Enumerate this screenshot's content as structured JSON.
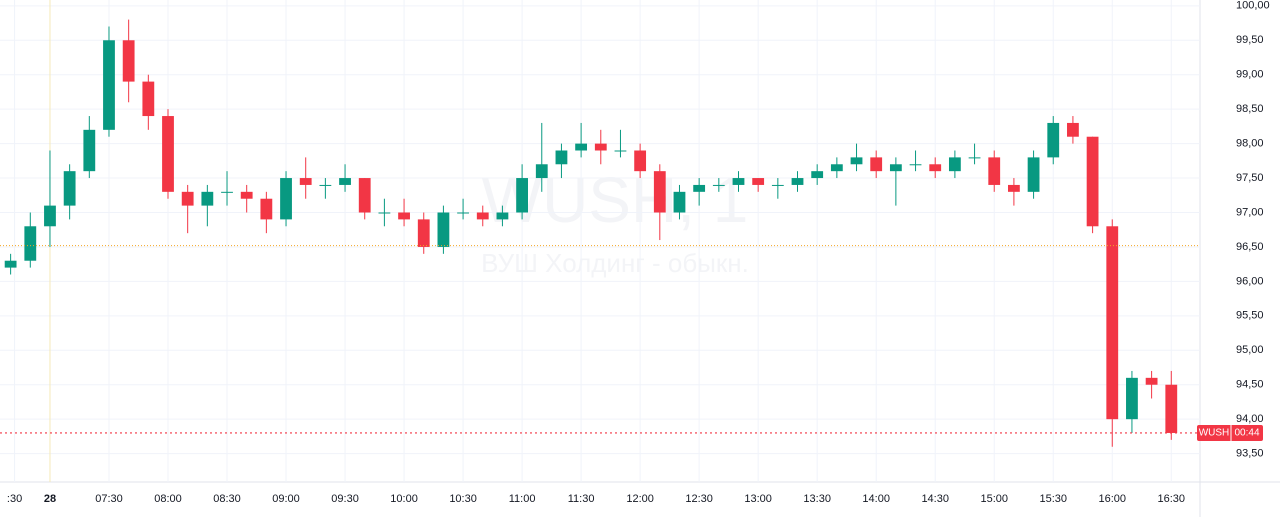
{
  "chart_data": {
    "type": "candlestick",
    "watermark_title": "WUSH, 1",
    "watermark_subtitle": "ВУШ Холдинг - обыкн.",
    "symbol": "WUSH",
    "countdown": "00:44",
    "last_price": 93.8,
    "last_price_color": "#f23645",
    "reference_price": 96.52,
    "reference_color": "#f5a623",
    "up_color": "#089981",
    "down_color": "#f23645",
    "grid": true,
    "x": [
      -20,
      -10,
      0,
      10,
      20,
      30,
      40,
      50,
      60,
      70,
      80,
      90,
      100,
      110,
      120,
      130,
      140,
      150,
      160,
      170,
      180,
      190,
      200,
      210,
      220,
      230,
      240,
      250,
      260,
      270,
      280,
      290,
      300,
      310,
      320,
      330,
      340,
      350,
      360,
      370,
      380,
      390,
      400,
      410,
      420,
      430,
      440,
      450,
      460,
      470,
      480,
      490,
      500,
      510,
      520,
      530,
      540,
      550,
      560,
      570
    ],
    "open": [
      96.2,
      96.3,
      96.8,
      97.1,
      97.6,
      98.2,
      99.5,
      98.9,
      98.4,
      97.3,
      97.1,
      97.3,
      97.3,
      97.2,
      96.9,
      97.5,
      97.4,
      97.4,
      97.5,
      97.0,
      97.0,
      96.9,
      96.5,
      97.0,
      97.0,
      96.9,
      97.0,
      97.5,
      97.7,
      97.9,
      98.0,
      97.9,
      97.9,
      97.6,
      97.0,
      97.3,
      97.4,
      97.4,
      97.5,
      97.4,
      97.4,
      97.5,
      97.6,
      97.7,
      97.8,
      97.6,
      97.7,
      97.7,
      97.6,
      97.8,
      97.8,
      97.4,
      97.3,
      97.8,
      98.3,
      98.1,
      96.8,
      94.0,
      94.6,
      94.5
    ],
    "high": [
      96.4,
      97.0,
      97.9,
      97.7,
      98.4,
      99.7,
      99.8,
      99.0,
      98.5,
      97.4,
      97.4,
      97.6,
      97.4,
      97.3,
      97.6,
      97.8,
      97.5,
      97.7,
      97.5,
      97.2,
      97.2,
      97.0,
      97.1,
      97.2,
      97.1,
      97.1,
      97.7,
      98.3,
      98.0,
      98.3,
      98.2,
      98.2,
      98.0,
      97.7,
      97.4,
      97.5,
      97.5,
      97.6,
      97.5,
      97.5,
      97.6,
      97.7,
      97.8,
      98.0,
      97.9,
      97.8,
      97.9,
      97.8,
      97.9,
      98.0,
      97.9,
      97.5,
      97.9,
      98.4,
      98.4,
      98.1,
      96.9,
      94.7,
      94.7,
      94.7
    ],
    "low": [
      96.1,
      96.2,
      96.5,
      96.9,
      97.5,
      98.1,
      98.6,
      98.2,
      97.2,
      96.7,
      96.8,
      97.1,
      97.0,
      96.7,
      96.8,
      97.2,
      97.2,
      97.3,
      96.9,
      96.8,
      96.8,
      96.4,
      96.4,
      96.9,
      96.8,
      96.8,
      96.9,
      97.3,
      97.5,
      97.8,
      97.7,
      97.8,
      97.5,
      96.6,
      96.9,
      97.1,
      97.3,
      97.3,
      97.3,
      97.2,
      97.3,
      97.4,
      97.5,
      97.6,
      97.5,
      97.1,
      97.6,
      97.5,
      97.5,
      97.7,
      97.3,
      97.1,
      97.2,
      97.7,
      98.0,
      96.7,
      93.6,
      93.8,
      94.3,
      93.7
    ],
    "close": [
      96.3,
      96.8,
      97.1,
      97.6,
      98.2,
      99.5,
      98.9,
      98.4,
      97.3,
      97.1,
      97.3,
      97.3,
      97.2,
      96.9,
      97.5,
      97.4,
      97.4,
      97.5,
      97.0,
      97.0,
      96.9,
      96.5,
      97.0,
      97.0,
      96.9,
      97.0,
      97.5,
      97.7,
      97.9,
      98.0,
      97.9,
      97.9,
      97.6,
      97.0,
      97.3,
      97.4,
      97.4,
      97.5,
      97.4,
      97.4,
      97.5,
      97.6,
      97.7,
      97.8,
      97.6,
      97.7,
      97.7,
      97.6,
      97.8,
      97.8,
      97.4,
      97.3,
      97.8,
      98.3,
      98.1,
      96.8,
      94.0,
      94.6,
      94.5,
      93.8
    ],
    "xlim": [
      -25.4,
      584.6
    ],
    "xticks": [
      {
        "value": -18,
        "label": ":30"
      },
      {
        "value": 0,
        "label": "28"
      },
      {
        "value": 30,
        "label": "07:30"
      },
      {
        "value": 60,
        "label": "08:00"
      },
      {
        "value": 90,
        "label": "08:30"
      },
      {
        "value": 120,
        "label": "09:00"
      },
      {
        "value": 150,
        "label": "09:30"
      },
      {
        "value": 180,
        "label": "10:00"
      },
      {
        "value": 210,
        "label": "10:30"
      },
      {
        "value": 240,
        "label": "11:00"
      },
      {
        "value": 270,
        "label": "11:30"
      },
      {
        "value": 300,
        "label": "12:00"
      },
      {
        "value": 330,
        "label": "12:30"
      },
      {
        "value": 360,
        "label": "13:00"
      },
      {
        "value": 390,
        "label": "13:30"
      },
      {
        "value": 420,
        "label": "14:00"
      },
      {
        "value": 450,
        "label": "14:30"
      },
      {
        "value": 480,
        "label": "15:00"
      },
      {
        "value": 510,
        "label": "15:30"
      },
      {
        "value": 540,
        "label": "16:00"
      },
      {
        "value": 570,
        "label": "16:30"
      }
    ],
    "ylim": [
      93.03,
      100.07
    ],
    "yticks": [
      {
        "value": 93.5,
        "label": "93,50"
      },
      {
        "value": 94,
        "label": "94,00"
      },
      {
        "value": 94.5,
        "label": "94,50"
      },
      {
        "value": 95,
        "label": "95,00"
      },
      {
        "value": 95.5,
        "label": "95,50"
      },
      {
        "value": 96,
        "label": "96,00"
      },
      {
        "value": 96.5,
        "label": "96,50"
      },
      {
        "value": 97,
        "label": "97,00"
      },
      {
        "value": 97.5,
        "label": "97,50"
      },
      {
        "value": 98,
        "label": "98,00"
      },
      {
        "value": 98.5,
        "label": "98,50"
      },
      {
        "value": 99,
        "label": "99,00"
      },
      {
        "value": 99.5,
        "label": "99,50"
      },
      {
        "value": 100,
        "label": "100,00"
      }
    ]
  }
}
